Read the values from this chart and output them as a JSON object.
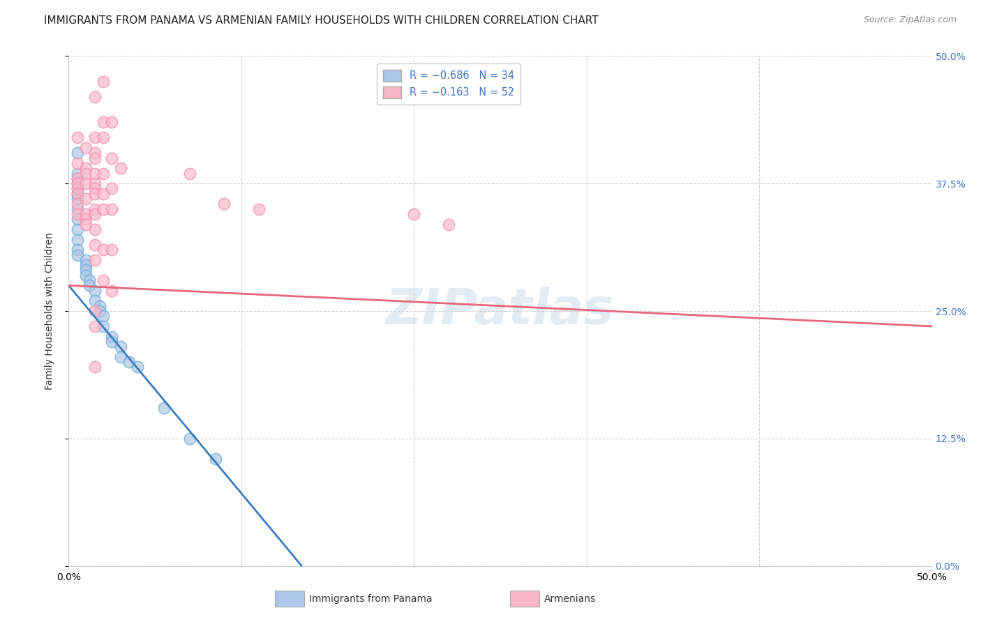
{
  "title": "IMMIGRANTS FROM PANAMA VS ARMENIAN FAMILY HOUSEHOLDS WITH CHILDREN CORRELATION CHART",
  "source": "Source: ZipAtlas.com",
  "ylabel": "Family Households with Children",
  "legend_entry1": "R = -0.686   N = 34",
  "legend_entry2": "R =  -0.163   N = 52",
  "legend_label1": "Immigrants from Panama",
  "legend_label2": "Armenians",
  "blue_scatter": [
    [
      0.5,
      40.5
    ],
    [
      0.5,
      37.5
    ],
    [
      0.5,
      38.5
    ],
    [
      0.5,
      36.5
    ],
    [
      0.5,
      35.0
    ],
    [
      0.5,
      33.0
    ],
    [
      0.5,
      34.0
    ],
    [
      0.5,
      32.0
    ],
    [
      0.5,
      31.0
    ],
    [
      0.5,
      38.0
    ],
    [
      0.5,
      36.0
    ],
    [
      0.5,
      37.0
    ],
    [
      0.5,
      30.5
    ],
    [
      1.0,
      30.0
    ],
    [
      1.0,
      29.5
    ],
    [
      1.0,
      29.0
    ],
    [
      1.0,
      28.5
    ],
    [
      1.2,
      28.0
    ],
    [
      1.2,
      27.5
    ],
    [
      1.5,
      27.0
    ],
    [
      1.5,
      26.0
    ],
    [
      1.8,
      25.5
    ],
    [
      1.8,
      25.0
    ],
    [
      2.0,
      24.5
    ],
    [
      2.0,
      23.5
    ],
    [
      2.5,
      22.5
    ],
    [
      2.5,
      22.0
    ],
    [
      3.0,
      21.5
    ],
    [
      3.0,
      20.5
    ],
    [
      3.5,
      20.0
    ],
    [
      4.0,
      19.5
    ],
    [
      5.5,
      15.5
    ],
    [
      7.0,
      12.5
    ],
    [
      8.5,
      10.5
    ]
  ],
  "pink_scatter": [
    [
      0.5,
      38.0
    ],
    [
      0.5,
      37.0
    ],
    [
      0.5,
      39.5
    ],
    [
      0.5,
      42.0
    ],
    [
      0.5,
      37.5
    ],
    [
      0.5,
      36.5
    ],
    [
      0.5,
      35.5
    ],
    [
      0.5,
      34.5
    ],
    [
      1.0,
      41.0
    ],
    [
      1.0,
      39.0
    ],
    [
      1.0,
      38.5
    ],
    [
      1.0,
      37.5
    ],
    [
      1.0,
      36.0
    ],
    [
      1.0,
      34.5
    ],
    [
      1.0,
      34.0
    ],
    [
      1.0,
      33.5
    ],
    [
      1.5,
      46.0
    ],
    [
      1.5,
      42.0
    ],
    [
      1.5,
      40.5
    ],
    [
      1.5,
      40.0
    ],
    [
      1.5,
      38.5
    ],
    [
      1.5,
      37.5
    ],
    [
      1.5,
      37.0
    ],
    [
      1.5,
      36.5
    ],
    [
      1.5,
      35.0
    ],
    [
      1.5,
      34.5
    ],
    [
      1.5,
      33.0
    ],
    [
      1.5,
      31.5
    ],
    [
      1.5,
      30.0
    ],
    [
      1.5,
      25.0
    ],
    [
      1.5,
      23.5
    ],
    [
      1.5,
      19.5
    ],
    [
      2.0,
      47.5
    ],
    [
      2.0,
      43.5
    ],
    [
      2.0,
      42.0
    ],
    [
      2.0,
      38.5
    ],
    [
      2.0,
      36.5
    ],
    [
      2.0,
      35.0
    ],
    [
      2.0,
      31.0
    ],
    [
      2.0,
      28.0
    ],
    [
      2.5,
      43.5
    ],
    [
      2.5,
      40.0
    ],
    [
      2.5,
      37.0
    ],
    [
      2.5,
      35.0
    ],
    [
      2.5,
      31.0
    ],
    [
      2.5,
      27.0
    ],
    [
      3.0,
      39.0
    ],
    [
      7.0,
      38.5
    ],
    [
      9.0,
      35.5
    ],
    [
      11.0,
      35.0
    ],
    [
      20.0,
      34.5
    ],
    [
      22.0,
      33.5
    ]
  ],
  "blue_line_x": [
    0.0,
    13.5
  ],
  "blue_line_y": [
    27.5,
    0.0
  ],
  "pink_line_x": [
    0.0,
    50.0
  ],
  "pink_line_y": [
    27.5,
    23.5
  ],
  "blue_color": "#aec6e8",
  "blue_edge_color": "#6baed6",
  "blue_line_color": "#3a7bbf",
  "pink_color": "#f9b8c8",
  "pink_edge_color": "#f48fb1",
  "pink_line_color": "#e8657a",
  "xlim": [
    0.0,
    50.0
  ],
  "ylim": [
    0.0,
    50.0
  ],
  "xtick_vals": [
    0.0,
    10.0,
    20.0,
    30.0,
    40.0,
    50.0
  ],
  "xtick_labels": [
    "0.0%",
    "",
    "",
    "",
    "",
    "50.0%"
  ],
  "ytick_vals": [
    0.0,
    12.5,
    25.0,
    37.5,
    50.0
  ],
  "ytick_labels_right": [
    "0.0%",
    "12.5%",
    "25.0%",
    "37.5%",
    "50.0%"
  ],
  "grid_color": "#d0d0d0",
  "background_color": "#ffffff",
  "title_fontsize": 11,
  "source_fontsize": 9,
  "axis_label_fontsize": 10,
  "tick_fontsize": 10,
  "watermark": "ZIPatlas"
}
